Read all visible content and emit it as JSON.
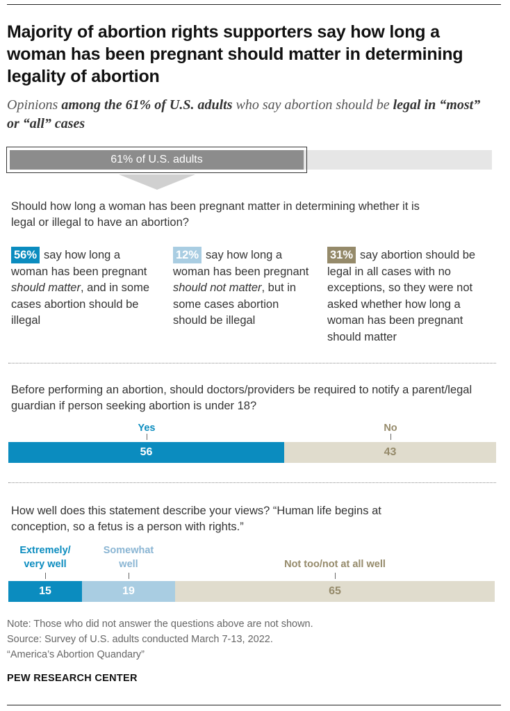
{
  "title": "Majority of abortion rights supporters say how long a woman has been pregnant should matter in determining legality of abortion",
  "subtitle": {
    "p1": "Opinions ",
    "b1": "among the 61% of U.S. adults",
    "p2": " who say abortion should be ",
    "b2": "legal in “most” or “all” cases"
  },
  "share": {
    "label": "61% of U.S. adults",
    "value": 61
  },
  "q1": {
    "question": "Should how long a woman has been pregnant matter in determining whether it is legal or illegal to have an abortion?",
    "columns": [
      {
        "badge": "56%",
        "color": "#0b8cbf",
        "t1": "say how long a woman has been pregnant ",
        "em": "should matter",
        "t2": ", and in some cases abortion should be illegal"
      },
      {
        "badge": "12%",
        "color": "#a9cde2",
        "t1": "say how long a woman has been pregnant ",
        "em": "should not matter",
        "t2": ", but in some cases abortion should be illegal"
      },
      {
        "badge": "31%",
        "color": "#958a6a",
        "t1": "say abortion should be legal in all cases with no exceptions, so they were not asked whether how long a woman has been pregnant should matter",
        "em": "",
        "t2": ""
      }
    ]
  },
  "q2": {
    "question": "Before performing an abortion, should doctors/providers be required to notify a parent/legal guardian if person seeking abortion is under 18?"
  },
  "q3": {
    "question": "How well does this statement describe your views? “Human life begins at conception, so a fetus is a person with rights.”"
  },
  "chart_data": [
    {
      "type": "bar",
      "categories": [
        "Yes",
        "No"
      ],
      "values": [
        56,
        43
      ],
      "colors": [
        "#0b8cbf",
        "#e0dccd"
      ],
      "label_colors": [
        "#0b8cbf",
        "#958a6a"
      ]
    },
    {
      "type": "bar",
      "categories": [
        "Extremely/\nvery well",
        "Somewhat\nwell",
        "Not too/not at all well"
      ],
      "values": [
        15,
        19,
        65
      ],
      "colors": [
        "#0b8cbf",
        "#a9cde2",
        "#e0dccd"
      ],
      "label_colors": [
        "#0b8cbf",
        "#8ab5d3",
        "#958a6a"
      ]
    }
  ],
  "notes": {
    "note": "Note: Those who did not answer the questions above are not shown.",
    "source": "Source: Survey of U.S. adults conducted March 7-13, 2022.",
    "report": "“America’s Abortion Quandary”"
  },
  "brand": "PEW RESEARCH CENTER"
}
